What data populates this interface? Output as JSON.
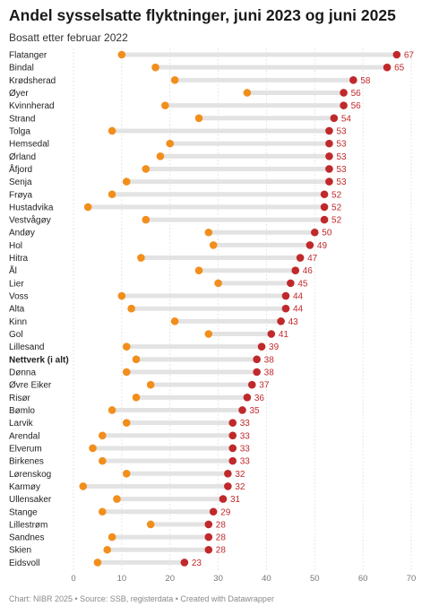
{
  "header": {
    "title": "Andel sysselsatte flyktninger, juni 2023 og juni 2025",
    "subtitle": "Bosatt etter februar 2022"
  },
  "footer": {
    "text": "Chart: NIBR 2025 • Source: SSB, registerdata • Created with Datawrapper"
  },
  "colors": {
    "start": "#f28e1c",
    "end": "#c0292b",
    "range": "#e3e3e3",
    "grid": "#e6e6e6",
    "value_label": "#c0292b"
  },
  "chart_data": {
    "type": "dot-range",
    "x_ticks": [
      "0",
      "10",
      "20",
      "30",
      "40",
      "50",
      "60",
      "70"
    ],
    "xlim": [
      0,
      70
    ],
    "grid": true,
    "series": [
      {
        "name": "juni 2023"
      },
      {
        "name": "juni 2025"
      }
    ],
    "rows": [
      {
        "label": "Flatanger",
        "start": 10,
        "end": 67,
        "label_text": "67",
        "bold": false
      },
      {
        "label": "Bindal",
        "start": 17,
        "end": 65,
        "label_text": "65",
        "bold": false
      },
      {
        "label": "Krødsherad",
        "start": 21,
        "end": 58,
        "label_text": "58",
        "bold": false
      },
      {
        "label": "Øyer",
        "start": 36,
        "end": 56,
        "label_text": "56",
        "bold": false
      },
      {
        "label": "Kvinnherad",
        "start": 19,
        "end": 56,
        "label_text": "56",
        "bold": false
      },
      {
        "label": "Strand",
        "start": 26,
        "end": 54,
        "label_text": "54",
        "bold": false
      },
      {
        "label": "Tolga",
        "start": 8,
        "end": 53,
        "label_text": "53",
        "bold": false
      },
      {
        "label": "Hemsedal",
        "start": 20,
        "end": 53,
        "label_text": "53",
        "bold": false
      },
      {
        "label": "Ørland",
        "start": 18,
        "end": 53,
        "label_text": "53",
        "bold": false
      },
      {
        "label": "Åfjord",
        "start": 15,
        "end": 53,
        "label_text": "53",
        "bold": false
      },
      {
        "label": "Senja",
        "start": 11,
        "end": 53,
        "label_text": "53",
        "bold": false
      },
      {
        "label": "Frøya",
        "start": 8,
        "end": 52,
        "label_text": "52",
        "bold": false
      },
      {
        "label": "Hustadvika",
        "start": 3,
        "end": 52,
        "label_text": "52",
        "bold": false
      },
      {
        "label": "Vestvågøy",
        "start": 15,
        "end": 52,
        "label_text": "52",
        "bold": false
      },
      {
        "label": "Andøy",
        "start": 28,
        "end": 50,
        "label_text": "50",
        "bold": false
      },
      {
        "label": "Hol",
        "start": 29,
        "end": 49,
        "label_text": "49",
        "bold": false
      },
      {
        "label": "Hitra",
        "start": 14,
        "end": 47,
        "label_text": "47",
        "bold": false
      },
      {
        "label": "Ål",
        "start": 26,
        "end": 46,
        "label_text": "46",
        "bold": false
      },
      {
        "label": "Lier",
        "start": 30,
        "end": 45,
        "label_text": "45",
        "bold": false
      },
      {
        "label": "Voss",
        "start": 10,
        "end": 44,
        "label_text": "44",
        "bold": false
      },
      {
        "label": "Alta",
        "start": 12,
        "end": 44,
        "label_text": "44",
        "bold": false
      },
      {
        "label": "Kinn",
        "start": 21,
        "end": 43,
        "label_text": "43",
        "bold": false
      },
      {
        "label": "Gol",
        "start": 28,
        "end": 41,
        "label_text": "41",
        "bold": false
      },
      {
        "label": "Lillesand",
        "start": 11,
        "end": 39,
        "label_text": "39",
        "bold": false
      },
      {
        "label": "Nettverk (i alt)",
        "start": 13,
        "end": 38,
        "label_text": "38",
        "bold": true
      },
      {
        "label": "Dønna",
        "start": 11,
        "end": 38,
        "label_text": "38",
        "bold": false
      },
      {
        "label": "Øvre Eiker",
        "start": 16,
        "end": 37,
        "label_text": "37",
        "bold": false
      },
      {
        "label": "Risør",
        "start": 13,
        "end": 36,
        "label_text": "36",
        "bold": false
      },
      {
        "label": "Bømlo",
        "start": 8,
        "end": 35,
        "label_text": "35",
        "bold": false
      },
      {
        "label": "Larvik",
        "start": 11,
        "end": 33,
        "label_text": "33",
        "bold": false
      },
      {
        "label": "Arendal",
        "start": 6,
        "end": 33,
        "label_text": "33",
        "bold": false
      },
      {
        "label": "Elverum",
        "start": 4,
        "end": 33,
        "label_text": "33",
        "bold": false
      },
      {
        "label": "Birkenes",
        "start": 6,
        "end": 33,
        "label_text": "33",
        "bold": false
      },
      {
        "label": "Lørenskog",
        "start": 11,
        "end": 32,
        "label_text": "32",
        "bold": false
      },
      {
        "label": "Karmøy",
        "start": 2,
        "end": 32,
        "label_text": "32",
        "bold": false
      },
      {
        "label": "Ullensaker",
        "start": 9,
        "end": 31,
        "label_text": "31",
        "bold": false
      },
      {
        "label": "Stange",
        "start": 6,
        "end": 29,
        "label_text": "29",
        "bold": false
      },
      {
        "label": "Lillestrøm",
        "start": 16,
        "end": 28,
        "label_text": "28",
        "bold": false
      },
      {
        "label": "Sandnes",
        "start": 8,
        "end": 28,
        "label_text": "28",
        "bold": false
      },
      {
        "label": "Skien",
        "start": 7,
        "end": 28,
        "label_text": "28",
        "bold": false
      },
      {
        "label": "Eidsvoll",
        "start": 5,
        "end": 23,
        "label_text": "23",
        "bold": false
      }
    ]
  }
}
